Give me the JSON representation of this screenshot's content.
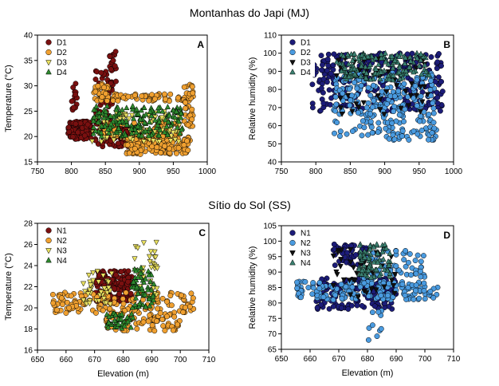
{
  "figure": {
    "sections": [
      {
        "id": "mj",
        "title": "Montanhas do Japi (MJ)"
      },
      {
        "id": "ss",
        "title": "Sítio do Sol (SS)"
      }
    ]
  },
  "chart_data": [
    {
      "panel": "A",
      "type": "scatter",
      "section": "Montanhas do Japi (MJ)",
      "xlabel": "",
      "ylabel": "Temperature (°C)",
      "xlim": [
        750,
        1000
      ],
      "ylim": [
        15,
        40
      ],
      "xticks": [
        750,
        800,
        850,
        900,
        950,
        1000
      ],
      "yticks": [
        15,
        20,
        25,
        30,
        35,
        40
      ],
      "legend_position": "top-left",
      "series": [
        {
          "name": "D1",
          "marker": "circle",
          "color": "#7a1010",
          "clusters": [
            {
              "x": [
                795,
                830
              ],
              "y": [
                19.5,
                23
              ],
              "n": 130
            },
            {
              "x": [
                800,
                810
              ],
              "y": [
                25,
                31
              ],
              "n": 14
            },
            {
              "x": [
                835,
                860
              ],
              "y": [
                22,
                33
              ],
              "n": 60
            },
            {
              "x": [
                855,
                866
              ],
              "y": [
                30,
                37
              ],
              "n": 22
            },
            {
              "x": [
                835,
                900
              ],
              "y": [
                18,
                22
              ],
              "n": 90
            }
          ]
        },
        {
          "name": "D2",
          "marker": "circle",
          "color": "#f0a030",
          "clusters": [
            {
              "x": [
                833,
                855
              ],
              "y": [
                27,
                30.5
              ],
              "n": 40
            },
            {
              "x": [
                860,
                975
              ],
              "y": [
                27,
                28.5
              ],
              "n": 60
            },
            {
              "x": [
                880,
                975
              ],
              "y": [
                16.5,
                20
              ],
              "n": 160
            },
            {
              "x": [
                965,
                980
              ],
              "y": [
                22,
                30.5
              ],
              "n": 40
            },
            {
              "x": [
                845,
                960
              ],
              "y": [
                20,
                23
              ],
              "n": 80
            }
          ]
        },
        {
          "name": "D3",
          "marker": "triangle-down",
          "color": "#e8e060",
          "clusters": [
            {
              "x": [
                830,
                960
              ],
              "y": [
                19,
                25
              ],
              "n": 100
            }
          ]
        },
        {
          "name": "D4",
          "marker": "triangle-up",
          "color": "#2e8b2e",
          "clusters": [
            {
              "x": [
                830,
                965
              ],
              "y": [
                20,
                26
              ],
              "n": 170
            }
          ]
        }
      ]
    },
    {
      "panel": "B",
      "type": "scatter",
      "section": "Montanhas do Japi (MJ)",
      "xlabel": "",
      "ylabel": "Relative humidity (%)",
      "xlim": [
        750,
        1000
      ],
      "ylim": [
        40,
        110
      ],
      "xticks": [
        750,
        800,
        850,
        900,
        950,
        1000
      ],
      "yticks": [
        40,
        50,
        60,
        70,
        80,
        90,
        100,
        110
      ],
      "legend_position": "top-left",
      "series": [
        {
          "name": "D1",
          "marker": "circle",
          "color": "#1c1c78",
          "clusters": [
            {
              "x": [
                795,
                985
              ],
              "y": [
                68,
                100
              ],
              "n": 260
            }
          ]
        },
        {
          "name": "D2",
          "marker": "circle",
          "color": "#4a9be0",
          "clusters": [
            {
              "x": [
                825,
                975
              ],
              "y": [
                52,
                90
              ],
              "n": 260
            }
          ]
        },
        {
          "name": "D3",
          "marker": "triangle-down",
          "color": "#101010",
          "clusters": [
            {
              "x": [
                830,
                965
              ],
              "y": [
                66,
                99
              ],
              "n": 50
            }
          ]
        },
        {
          "name": "D4",
          "marker": "triangle-up",
          "color": "#3a8070",
          "clusters": [
            {
              "x": [
                830,
                965
              ],
              "y": [
                85,
                100
              ],
              "n": 150
            }
          ]
        }
      ]
    },
    {
      "panel": "C",
      "type": "scatter",
      "section": "Sítio do Sol (SS)",
      "xlabel": "Elevation (m)",
      "ylabel": "Temperature (°C)",
      "xlim": [
        650,
        710
      ],
      "ylim": [
        16,
        28
      ],
      "xticks": [
        650,
        660,
        670,
        680,
        690,
        700,
        710
      ],
      "yticks": [
        16,
        18,
        20,
        22,
        24,
        26,
        28
      ],
      "legend_position": "top-left",
      "series": [
        {
          "name": "N1",
          "marker": "circle",
          "color": "#7a1010",
          "clusters": [
            {
              "x": [
                670,
                683
              ],
              "y": [
                20.5,
                23.5
              ],
              "n": 140
            }
          ]
        },
        {
          "name": "N2",
          "marker": "circle",
          "color": "#f0a030",
          "clusters": [
            {
              "x": [
                655,
                705
              ],
              "y": [
                19.5,
                21.5
              ],
              "n": 150
            },
            {
              "x": [
                674,
                700
              ],
              "y": [
                17.8,
                19.5
              ],
              "n": 80
            }
          ]
        },
        {
          "name": "N3",
          "marker": "triangle-down",
          "color": "#e8e060",
          "clusters": [
            {
              "x": [
                666,
                676
              ],
              "y": [
                20,
                23.5
              ],
              "n": 40
            },
            {
              "x": [
                684,
                692
              ],
              "y": [
                21,
                26.3
              ],
              "n": 40
            }
          ]
        },
        {
          "name": "N4",
          "marker": "triangle-up",
          "color": "#2e8b2e",
          "clusters": [
            {
              "x": [
                683,
                691
              ],
              "y": [
                20,
                24
              ],
              "n": 60
            },
            {
              "x": [
                674,
                684
              ],
              "y": [
                18,
                19.5
              ],
              "n": 40
            }
          ]
        }
      ]
    },
    {
      "panel": "D",
      "type": "scatter",
      "section": "Sítio do Sol (SS)",
      "xlabel": "Elevation (m)",
      "ylabel": "Relative humidity (%)",
      "xlim": [
        650,
        710
      ],
      "ylim": [
        65,
        105
      ],
      "xticks": [
        650,
        660,
        670,
        680,
        690,
        700,
        710
      ],
      "yticks": [
        65,
        70,
        75,
        80,
        85,
        90,
        95,
        100,
        105
      ],
      "legend_position": "top-left",
      "series": [
        {
          "name": "N1",
          "marker": "circle",
          "color": "#1c1c78",
          "clusters": [
            {
              "x": [
                662,
                690
              ],
              "y": [
                78,
                88
              ],
              "n": 180
            },
            {
              "x": [
                668,
                680
              ],
              "y": [
                92,
                99
              ],
              "n": 50
            }
          ]
        },
        {
          "name": "N2",
          "marker": "circle",
          "color": "#4a9be0",
          "clusters": [
            {
              "x": [
                655,
                705
              ],
              "y": [
                81,
                87
              ],
              "n": 170
            },
            {
              "x": [
                678,
                700
              ],
              "y": [
                88,
                97
              ],
              "n": 60
            },
            {
              "x": [
                680,
                685
              ],
              "y": [
                68,
                80
              ],
              "n": 10
            }
          ]
        },
        {
          "name": "N3",
          "marker": "triangle-down",
          "color": "#101010",
          "clusters": [
            {
              "x": [
                668,
                690
              ],
              "y": [
                82,
                98
              ],
              "n": 40
            }
          ]
        },
        {
          "name": "N4",
          "marker": "triangle-up",
          "color": "#3a8070",
          "clusters": [
            {
              "x": [
                677,
                688
              ],
              "y": [
                88,
                99
              ],
              "n": 80
            }
          ]
        }
      ]
    }
  ]
}
